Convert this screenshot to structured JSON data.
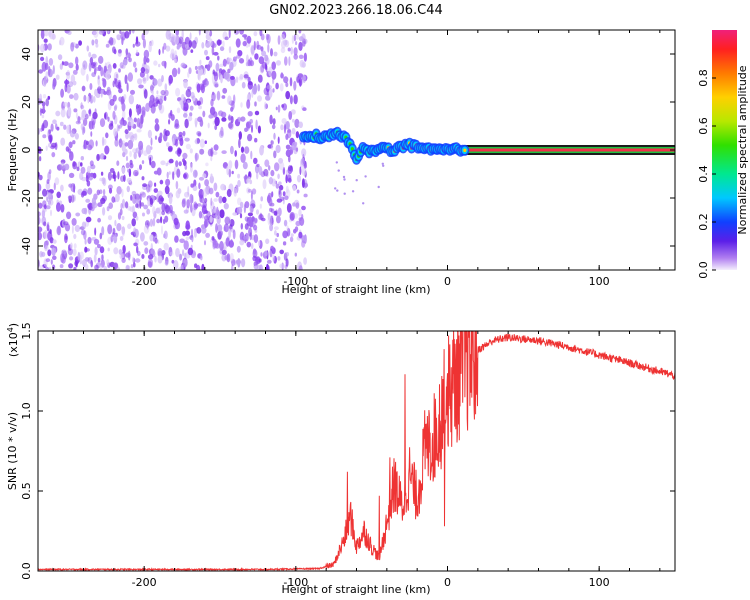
{
  "title": "GN02.2023.266.18.06.C44",
  "colors": {
    "noise": "#8a3cf0",
    "snr_line": "#ee3333",
    "frame": "#000000"
  },
  "chart_data": [
    {
      "type": "heatmap",
      "name": "spectrogram",
      "xlabel": "Height of straight line (km)",
      "ylabel": "Frequency (Hz)",
      "xlim": [
        -270,
        150
      ],
      "ylim": [
        -50,
        50
      ],
      "xticks": [
        -200,
        -100,
        0,
        100
      ],
      "xtick_labels": [
        "-200",
        "-100",
        "0",
        "100"
      ],
      "yticks": [
        -40,
        -20,
        0,
        20,
        40
      ],
      "ytick_labels": [
        "-40",
        "-20",
        "0",
        "20",
        "40"
      ],
      "noise_region_x": [
        -270,
        -93
      ],
      "signal_path": [
        [
          -95,
          5
        ],
        [
          -88,
          6
        ],
        [
          -80,
          5
        ],
        [
          -73,
          7
        ],
        [
          -66,
          4
        ],
        [
          -60,
          -3
        ],
        [
          -55,
          1
        ],
        [
          -50,
          -1
        ],
        [
          -44,
          1
        ],
        [
          -38,
          0
        ],
        [
          -32,
          1
        ],
        [
          -26,
          2
        ],
        [
          -20,
          1
        ],
        [
          -14,
          0
        ],
        [
          -8,
          0
        ],
        [
          0,
          0
        ],
        [
          10,
          0
        ],
        [
          150,
          0
        ]
      ],
      "carrier_frequency": 0,
      "colorbar": {
        "label": "Normalized spectral amplitude",
        "ticks": [
          0.0,
          0.2,
          0.4,
          0.6,
          0.8
        ],
        "tick_labels": [
          "0.0",
          "0.2",
          "0.4",
          "0.6",
          "0.8"
        ],
        "range": [
          0,
          1
        ]
      }
    },
    {
      "type": "line",
      "name": "snr",
      "xlabel": "Height of straight line (km)",
      "ylabel": "SNR (10 * v/v)",
      "scale_label": "(x10",
      "scale_exp": "4",
      "scale_close": ")",
      "xlim": [
        -270,
        150
      ],
      "ylim": [
        0,
        1.5
      ],
      "xticks": [
        -200,
        -100,
        0,
        100
      ],
      "xtick_labels": [
        "-200",
        "-100",
        "0",
        "100"
      ],
      "yticks": [
        0.0,
        0.5,
        1.0,
        1.5
      ],
      "ytick_labels": [
        "0.0",
        "0.5",
        "1.0",
        "1.5"
      ],
      "envelope": [
        [
          -270,
          0.01
        ],
        [
          -200,
          0.01
        ],
        [
          -120,
          0.01
        ],
        [
          -85,
          0.015
        ],
        [
          -75,
          0.04
        ],
        [
          -68,
          0.2
        ],
        [
          -64,
          0.35
        ],
        [
          -60,
          0.15
        ],
        [
          -55,
          0.25
        ],
        [
          -50,
          0.15
        ],
        [
          -45,
          0.08
        ],
        [
          -40,
          0.3
        ],
        [
          -35,
          0.55
        ],
        [
          -30,
          0.4
        ],
        [
          -25,
          0.6
        ],
        [
          -20,
          0.45
        ],
        [
          -15,
          0.75
        ],
        [
          -10,
          0.8
        ],
        [
          -5,
          0.95
        ],
        [
          0,
          1.1
        ],
        [
          10,
          1.28
        ],
        [
          20,
          1.38
        ],
        [
          30,
          1.44
        ],
        [
          40,
          1.46
        ],
        [
          60,
          1.44
        ],
        [
          80,
          1.4
        ],
        [
          100,
          1.35
        ],
        [
          120,
          1.3
        ],
        [
          150,
          1.22
        ]
      ],
      "spikes": [
        [
          -66,
          0.62
        ],
        [
          -45,
          0.47
        ],
        [
          -38,
          0.71
        ],
        [
          -28,
          1.23
        ],
        [
          -12,
          0.98
        ],
        [
          -3,
          1.2
        ],
        [
          -2,
          0.28
        ],
        [
          -1,
          0.95
        ],
        [
          3,
          1.13
        ]
      ]
    }
  ]
}
